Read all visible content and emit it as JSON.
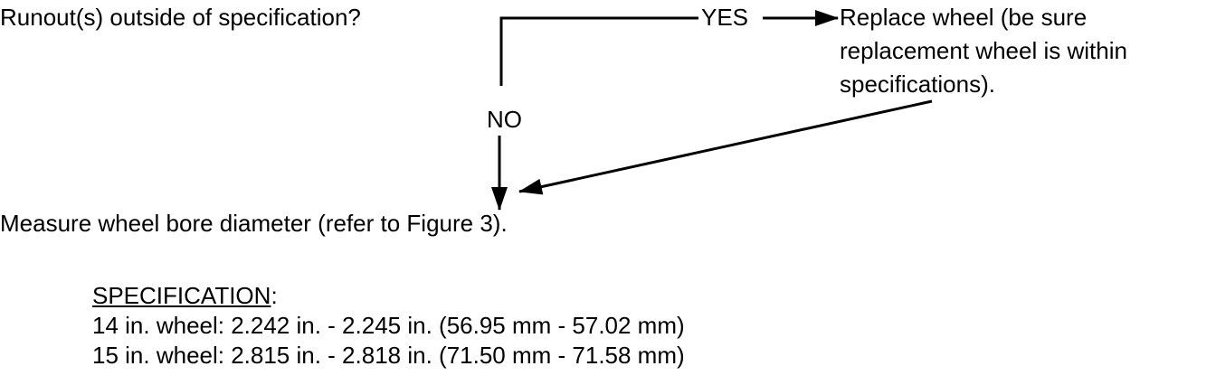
{
  "question": "Runout(s) outside of specification?",
  "yes_label": "YES",
  "no_label": "NO",
  "yes_action": [
    "Replace wheel (be sure",
    "replacement wheel is within",
    "specifications)."
  ],
  "next_step": "Measure wheel bore diameter (refer to Figure 3).",
  "specification": {
    "heading": "SPECIFICATION",
    "colon": ":",
    "rows": [
      "14 in. wheel:  2.242 in. - 2.245 in. (56.95 mm - 57.02 mm)",
      "15 in. wheel:  2.815 in. - 2.818 in. (71.50 mm - 71.58 mm)"
    ]
  }
}
